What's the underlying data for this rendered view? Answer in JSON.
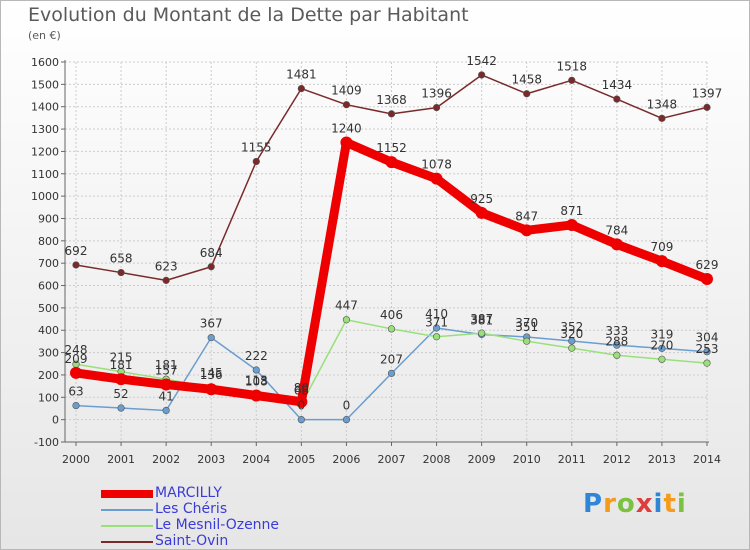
{
  "chart_data": {
    "type": "line",
    "title": "Evolution du Montant de la Dette par Habitant",
    "subtitle": "(en €)",
    "categories": [
      "2000",
      "2001",
      "2002",
      "2003",
      "2004",
      "2005",
      "2006",
      "2007",
      "2008",
      "2009",
      "2010",
      "2011",
      "2012",
      "2013",
      "2014"
    ],
    "ylim": [
      -100,
      1600
    ],
    "yticks": [
      -100,
      0,
      100,
      200,
      300,
      400,
      500,
      600,
      700,
      800,
      900,
      1000,
      1100,
      1200,
      1300,
      1400,
      1500,
      1600
    ],
    "grid": true,
    "series": [
      {
        "name": "MARCILLY",
        "color": "#ee0000",
        "values": [
          209,
          181,
          157,
          136,
          108,
          80,
          1240,
          1152,
          1078,
          925,
          847,
          871,
          784,
          709,
          629
        ]
      },
      {
        "name": "Les Chéris",
        "color": "#6a9ed0",
        "values": [
          63,
          52,
          41,
          367,
          222,
          0,
          0,
          207,
          410,
          381,
          370,
          352,
          333,
          319,
          304
        ]
      },
      {
        "name": "Le Mesnil-Ozenne",
        "color": "#99e07a",
        "values": [
          248,
          215,
          181,
          145,
          113,
          68,
          447,
          406,
          371,
          387,
          351,
          320,
          288,
          270,
          253
        ]
      },
      {
        "name": "Saint-Ovin",
        "color": "#7a2a2a",
        "values": [
          692,
          658,
          623,
          684,
          1155,
          1481,
          1409,
          1368,
          1396,
          1542,
          1458,
          1518,
          1434,
          1348,
          1397
        ]
      }
    ],
    "legend_position": "bottom-left"
  },
  "brand": {
    "letters": [
      "P",
      "r",
      "o",
      "x",
      "i",
      "t",
      "i"
    ],
    "colors": [
      "#2f86d6",
      "#f59a1a",
      "#7cc142",
      "#e03c3c",
      "#2f86d6",
      "#f59a1a",
      "#7cc142"
    ]
  }
}
